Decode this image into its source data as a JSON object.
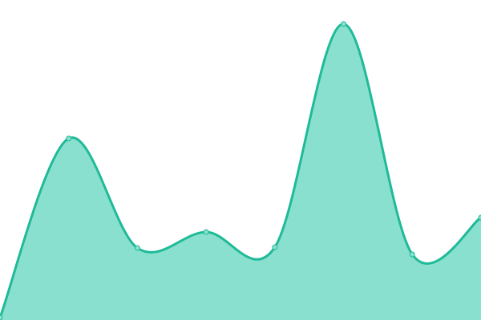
{
  "chart_data": {
    "type": "area",
    "x": [
      0,
      1,
      2,
      3,
      4,
      5,
      6,
      7
    ],
    "values": [
      3,
      227,
      90,
      110,
      91,
      370,
      82,
      128
    ],
    "ylim": [
      0,
      400
    ],
    "grid": false,
    "curve": "smooth",
    "colors": {
      "fill": "#8ae0cf",
      "line": "#1fba98",
      "point_fill": "#8ae0cf",
      "point_stroke": "#1fba98"
    }
  }
}
